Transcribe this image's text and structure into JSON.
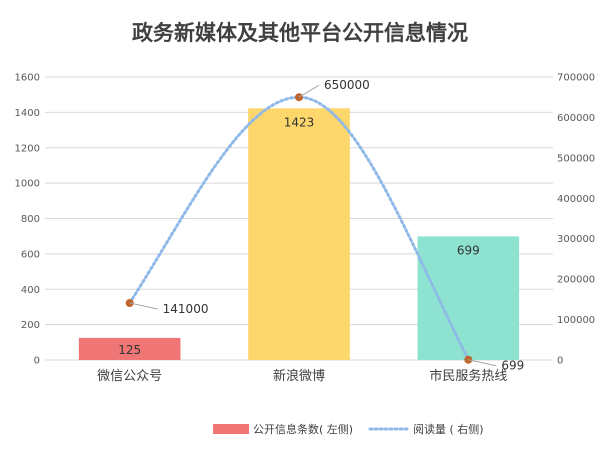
{
  "chart_data": {
    "type": "bar",
    "title": "政务新媒体及其他平台公开信息情况",
    "categories": [
      "微信公众号",
      "新浪微博",
      "市民服务热线"
    ],
    "series": [
      {
        "name": "公开信息条数( 左侧)",
        "type": "bar",
        "axis": "left",
        "values": [
          125,
          1423,
          699
        ],
        "color": "#f07575"
      },
      {
        "name": "阅读量 ( 右侧)",
        "type": "line",
        "axis": "right",
        "values": [
          141000,
          650000,
          699
        ],
        "color": "#8fb9e8"
      }
    ],
    "bar_colors": [
      "#f07575",
      "#fdd76b",
      "#8de3cf"
    ],
    "marker_color": "#c0652b",
    "y_left": {
      "min": 0,
      "max": 1600,
      "step": 200
    },
    "y_right": {
      "min": 0,
      "max": 700000,
      "step": 100000
    },
    "grid": true,
    "legend": "bottom"
  }
}
